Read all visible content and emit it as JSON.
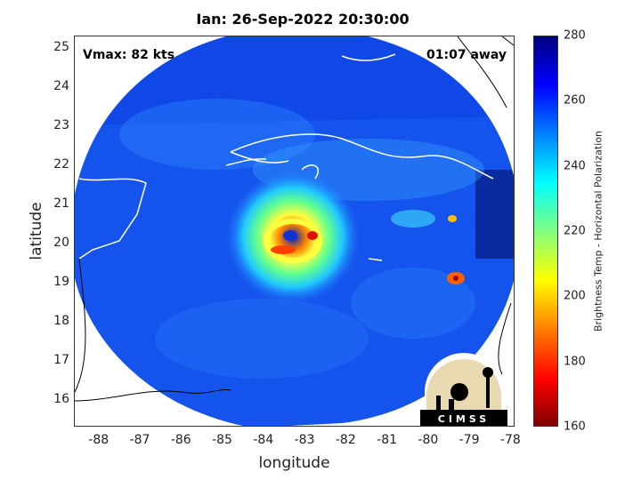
{
  "title": "Ian: 26-Sep-2022 20:30:00",
  "vmax": "Vmax: 82 kts",
  "time_away": "01:07 away",
  "xlabel": "longitude",
  "ylabel": "latitude",
  "colorbar_label": "Brightness Temp - Horizontal Polarization",
  "logo_text": "CIMSS",
  "map": {
    "type": "satellite-microwave-image",
    "x_ticks": [
      "-88",
      "-87",
      "-86",
      "-85",
      "-84",
      "-83",
      "-82",
      "-81",
      "-80",
      "-79",
      "-78"
    ],
    "y_ticks": [
      "25",
      "24",
      "23",
      "22",
      "21",
      "20",
      "19",
      "18",
      "17",
      "16"
    ],
    "colorbar_ticks": [
      "280",
      "260",
      "240",
      "220",
      "200",
      "180",
      "160"
    ],
    "lon_range": [
      -88.6,
      -77.9
    ],
    "lat_range": [
      15.3,
      25.3
    ],
    "colorbar_range": [
      160,
      280
    ],
    "storm_center": {
      "lon": -83.1,
      "lat": 20.1
    },
    "colors": {
      "background": "#1050e0",
      "outside_swath": "#ffffff",
      "coastline": "#ffffff",
      "eyewall_max": "#d02000",
      "band": "#40d0ff"
    }
  }
}
